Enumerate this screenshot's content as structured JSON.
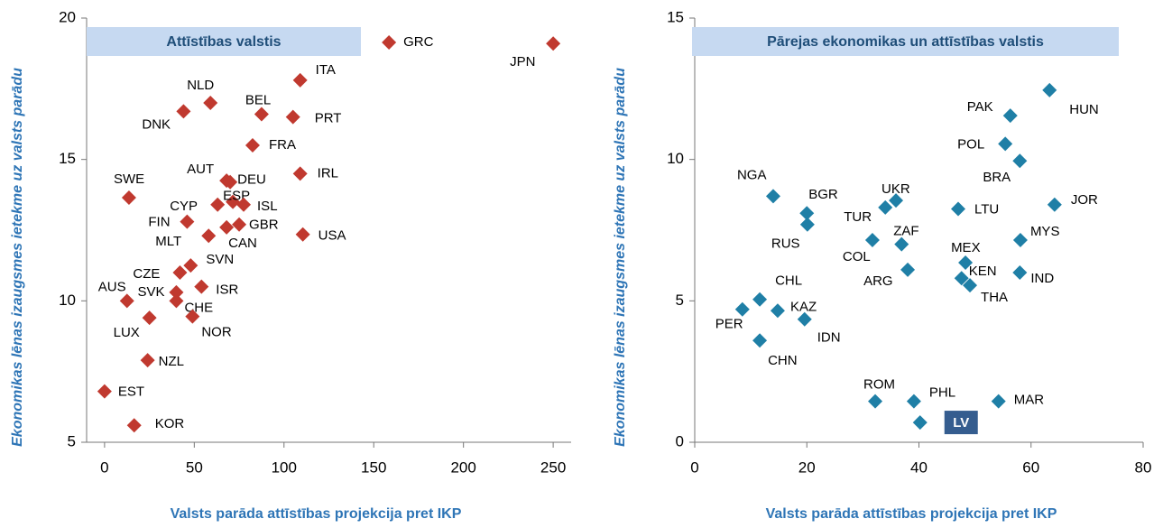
{
  "chart_data": [
    {
      "type": "scatter",
      "title": "Attīstības valstis",
      "x_label": "Valsts parāda attīstības projekcija pret IKP",
      "y_label": "Ekonomikas lēnas izaugsmes ietekme uz valsts parādu",
      "color": "#c0392f",
      "labels": [
        "GRC",
        "JPN",
        "ITA",
        "NLD",
        "DNK",
        "BEL",
        "PRT",
        "FRA",
        "IRL",
        "AUT",
        "DEU",
        "SWE",
        "CYP",
        "ESP",
        "ISL",
        "FIN",
        "GBR",
        "MLT",
        "CAN",
        "USA",
        "SVN",
        "CZE",
        "ISR",
        "SVK",
        "AUS",
        "CHE",
        "NOR",
        "LUX",
        "NZL",
        "EST",
        "KOR"
      ],
      "x": [
        158.5,
        250,
        109,
        59,
        44,
        87.5,
        105,
        82.5,
        109,
        68,
        70,
        13.6,
        63,
        71.5,
        77.5,
        46,
        75,
        58,
        68,
        110.5,
        48,
        42,
        54,
        40,
        12.5,
        40,
        49,
        25,
        24,
        0,
        16.5
      ],
      "values": [
        19.14,
        19.1,
        17.8,
        17.0,
        16.7,
        16.6,
        16.5,
        15.5,
        14.5,
        14.25,
        14.2,
        13.65,
        13.4,
        13.5,
        13.4,
        12.8,
        12.7,
        12.3,
        12.6,
        12.35,
        11.25,
        11.0,
        10.5,
        10.3,
        10.0,
        10.0,
        9.45,
        9.4,
        7.9,
        6.8,
        5.6
      ],
      "xlim": [
        -10,
        260
      ],
      "xticks": [
        0,
        50,
        100,
        150,
        200,
        250
      ],
      "ylim": [
        5,
        20
      ],
      "yticks": [
        5,
        10,
        15,
        20
      ]
    },
    {
      "type": "scatter",
      "title": "Pārejas ekonomikas un attīstības valstis",
      "x_label": "Valsts parāda attīstības projekcija pret IKP",
      "y_label": "Ekonomikas lēnas izaugsmes ietekme uz valsts parādu",
      "color": "#1f7fa6",
      "labels": [
        "HUN",
        "PAK",
        "POL",
        "BRA",
        "JOR",
        "NGA",
        "UKR",
        "TUR",
        "BGR",
        "LTU",
        "RUS",
        "MYS",
        "COL",
        "ZAF",
        "MEX",
        "ARG",
        "KEN",
        "THA",
        "IND",
        "CHL",
        "PER",
        "KAZ",
        "IDN",
        "CHN",
        "ROM",
        "PHL",
        "MAR"
      ],
      "x": [
        63.3,
        56.3,
        55.4,
        58,
        64.2,
        14,
        35.9,
        34,
        20,
        47,
        20.1,
        58.1,
        31.7,
        36.9,
        48.3,
        38,
        47.6,
        49.1,
        58,
        11.6,
        8.5,
        14.8,
        19.6,
        11.6,
        32.2,
        39.1,
        54.2
      ],
      "values": [
        12.45,
        11.55,
        10.55,
        9.95,
        8.4,
        8.7,
        8.55,
        8.3,
        8.1,
        8.25,
        7.7,
        7.15,
        7.15,
        7.0,
        6.35,
        6.1,
        5.8,
        5.55,
        6.0,
        5.05,
        4.7,
        4.65,
        4.35,
        3.6,
        1.45,
        1.45,
        1.45
      ],
      "annotation": {
        "text": "LV",
        "x": 40.2,
        "y": 0.7
      },
      "xlim": [
        0,
        80
      ],
      "xticks": [
        0,
        20,
        40,
        60,
        80
      ],
      "ylim": [
        0,
        15
      ],
      "yticks": [
        0,
        5,
        10,
        15
      ]
    }
  ]
}
